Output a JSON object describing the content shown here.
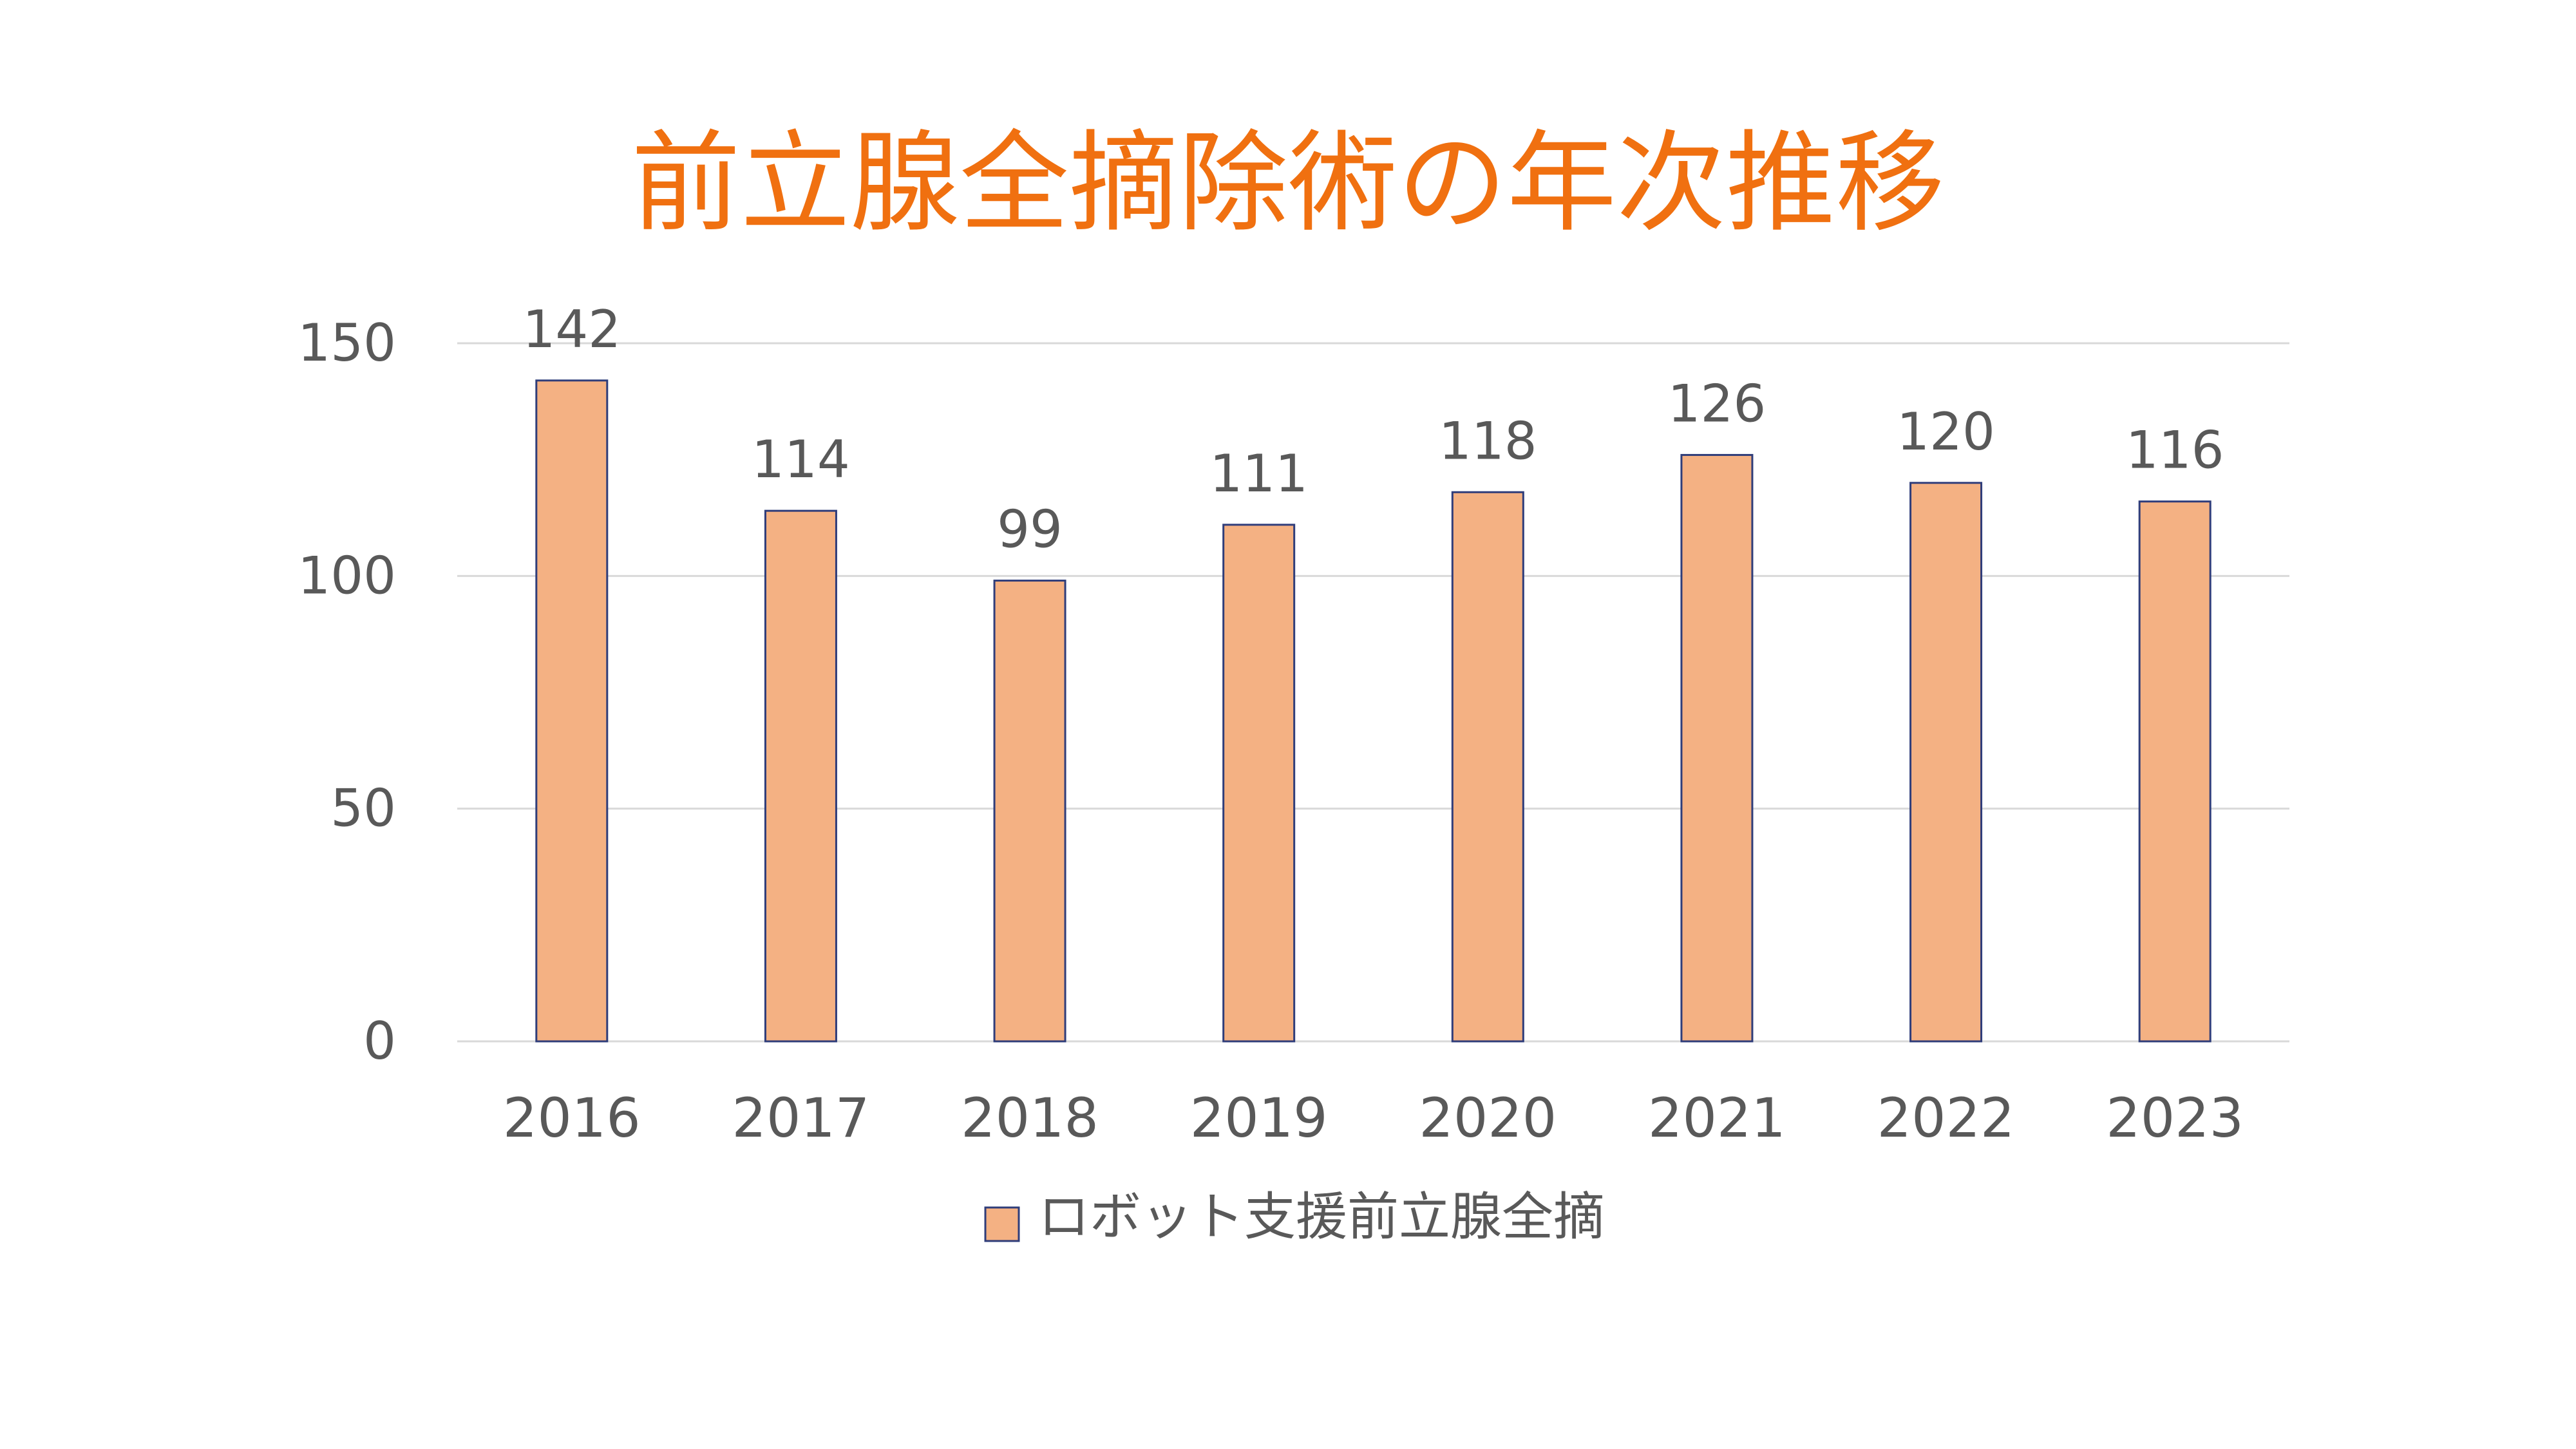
{
  "chart_data": {
    "type": "bar",
    "title": "前立腺全摘除術の年次推移",
    "categories": [
      "2016",
      "2017",
      "2018",
      "2019",
      "2020",
      "2021",
      "2022",
      "2023"
    ],
    "series": [
      {
        "name": "ロボット支援前立腺全摘",
        "values": [
          142,
          114,
          99,
          111,
          118,
          126,
          120,
          116
        ],
        "color": "#f4b183"
      }
    ],
    "ylim": [
      0,
      150
    ],
    "yticks": [
      0,
      50,
      100,
      150
    ],
    "grid": true,
    "data_labels": true,
    "legend": "bottom",
    "colors": {
      "title": "#f07010",
      "bar": "#f4b183",
      "bar_border": "#2f3d7a",
      "grid": "#d9d9d9",
      "text": "#595959"
    }
  }
}
